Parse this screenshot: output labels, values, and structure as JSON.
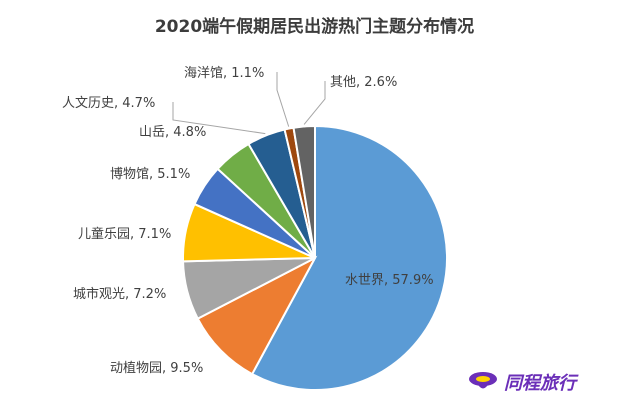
{
  "chart_data": {
    "type": "pie",
    "title": "2020端午假期居民出游热门主题分布情况",
    "slices": [
      {
        "label": "水世界",
        "value": 57.9,
        "display": "水世界, 57.9%",
        "color": "#5b9bd5"
      },
      {
        "label": "动植物园",
        "value": 9.5,
        "display": "动植物园, 9.5%",
        "color": "#ed7d31"
      },
      {
        "label": "城市观光",
        "value": 7.2,
        "display": "城市观光, 7.2%",
        "color": "#a5a5a5"
      },
      {
        "label": "儿童乐园",
        "value": 7.1,
        "display": "儿童乐园, 7.1%",
        "color": "#ffc000"
      },
      {
        "label": "博物馆",
        "value": 5.1,
        "display": "博物馆, 5.1%",
        "color": "#4472c4"
      },
      {
        "label": "山岳",
        "value": 4.8,
        "display": "山岳, 4.8%",
        "color": "#70ad47"
      },
      {
        "label": "人文历史",
        "value": 4.7,
        "display": "人文历史, 4.7%",
        "color": "#255e91"
      },
      {
        "label": "海洋馆",
        "value": 1.1,
        "display": "海洋馆, 1.1%",
        "color": "#9e480e"
      },
      {
        "label": "其他",
        "value": 2.6,
        "display": "其他, 2.6%",
        "color": "#636363"
      }
    ]
  },
  "brand": {
    "name": "同程旅行",
    "logo_icon": "tongcheng-logo-icon"
  }
}
